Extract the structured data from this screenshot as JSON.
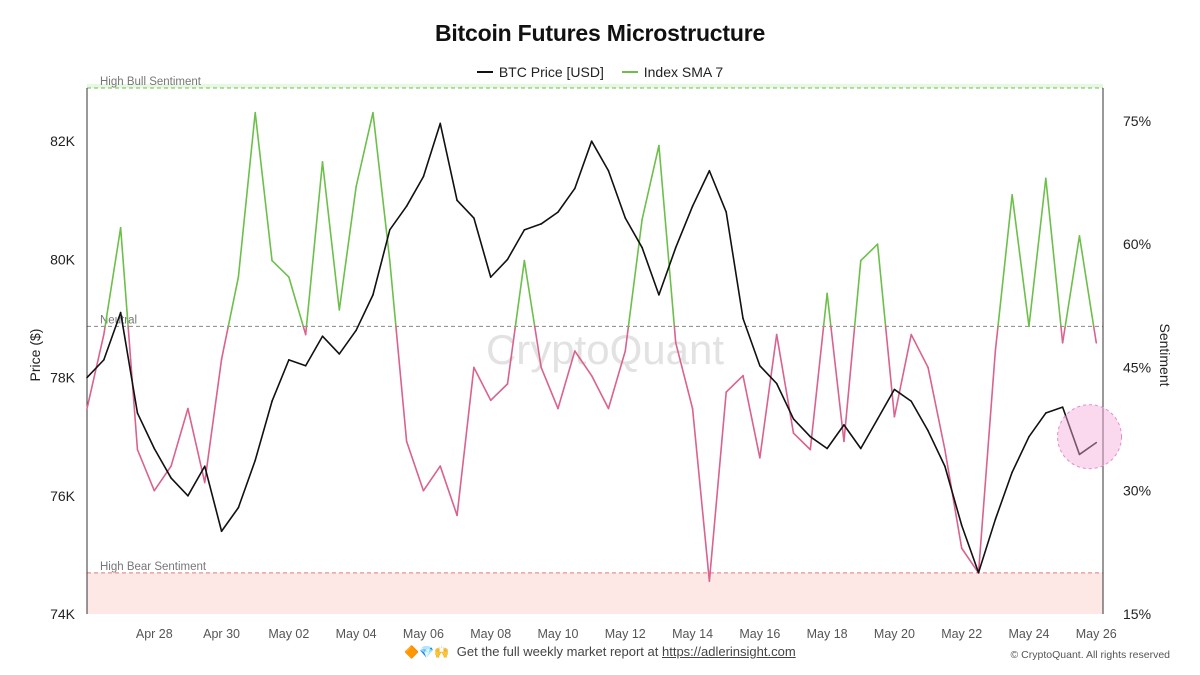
{
  "title": "Bitcoin Futures Microstructure",
  "legend": [
    {
      "label": "BTC Price [USD]",
      "color": "#111111"
    },
    {
      "label": "Index SMA 7",
      "color": "#6cc04a"
    }
  ],
  "watermark": "CryptoQuant",
  "footer": {
    "emoji": "🔶💎🙌",
    "text": "Get the full weekly market report at ",
    "link": "https://adlerinsight.com"
  },
  "copyright": "© CryptoQuant. All rights reserved",
  "chart_data": {
    "type": "line",
    "title": "Bitcoin Futures Microstructure",
    "xlabel": "",
    "ylabel": "Price ($)",
    "y2label": "Sentiment",
    "x_ticks": [
      "Apr 28",
      "Apr 30",
      "May 02",
      "May 04",
      "May 06",
      "May 08",
      "May 10",
      "May 12",
      "May 14",
      "May 16",
      "May 18",
      "May 20",
      "May 22",
      "May 24",
      "May 26"
    ],
    "x_range": [
      "Apr 26",
      "May 26"
    ],
    "y_ticks": [
      "74K",
      "76K",
      "78K",
      "80K",
      "82K"
    ],
    "y_tick_values": [
      74000,
      76000,
      78000,
      80000,
      82000
    ],
    "ylim": [
      74000,
      82900
    ],
    "y2_ticks": [
      "15%",
      "30%",
      "45%",
      "60%",
      "75%"
    ],
    "y2_tick_values": [
      15,
      30,
      45,
      60,
      75
    ],
    "y2lim": [
      15,
      79
    ],
    "reference_lines": [
      {
        "label": "High Bull Sentiment",
        "value": 79,
        "color": "#6cc04a"
      },
      {
        "label": "Neutral",
        "value": 50,
        "color": "#888888"
      },
      {
        "label": "High Bear Sentiment",
        "value": 20,
        "color": "#e07a7a"
      }
    ],
    "shaded_zones": [
      {
        "from": 79,
        "to": 79.5,
        "color": "#e8f6e4"
      },
      {
        "from": 15,
        "to": 20,
        "color": "#fde8e6"
      }
    ],
    "sentiment_colors": {
      "above_neutral": "#6cc04a",
      "below_neutral": "#d9628f"
    },
    "grid": false,
    "series": [
      {
        "name": "BTC Price [USD]",
        "axis": "left",
        "color": "#111111",
        "x": [
          0,
          0.5,
          1,
          1.5,
          2,
          2.5,
          3,
          3.5,
          4,
          4.5,
          5,
          5.5,
          6,
          6.5,
          7,
          7.5,
          8,
          8.5,
          9,
          9.5,
          10,
          10.5,
          11,
          11.5,
          12,
          12.5,
          13,
          13.5,
          14,
          14.5,
          15,
          15.5,
          16,
          16.5,
          17,
          17.5,
          18,
          18.5,
          19,
          19.5,
          20,
          20.5,
          21,
          21.5,
          22,
          22.5,
          23,
          23.5,
          24,
          24.5,
          25,
          25.5,
          26,
          26.5,
          27,
          27.5,
          28,
          28.5,
          29,
          29.5,
          30
        ],
        "values": [
          78000,
          78300,
          79100,
          77400,
          76800,
          76300,
          76000,
          76500,
          75400,
          75800,
          76600,
          77600,
          78300,
          78200,
          78700,
          78400,
          78800,
          79400,
          80500,
          80900,
          81400,
          82300,
          81000,
          80700,
          79700,
          80000,
          80500,
          80600,
          80800,
          81200,
          82000,
          81500,
          80700,
          80200,
          79400,
          80200,
          80900,
          81500,
          80800,
          79000,
          78200,
          77900,
          77300,
          77000,
          76800,
          77200,
          76800,
          77300,
          77800,
          77600,
          77100,
          76500,
          75500,
          74700,
          75600,
          76400,
          77000,
          77400,
          77500,
          76700,
          76900
        ]
      },
      {
        "name": "Index SMA 7",
        "axis": "right",
        "x": [
          0,
          0.5,
          1,
          1.5,
          2,
          2.5,
          3,
          3.5,
          4,
          4.5,
          5,
          5.5,
          6,
          6.5,
          7,
          7.5,
          8,
          8.5,
          9,
          9.5,
          10,
          10.5,
          11,
          11.5,
          12,
          12.5,
          13,
          13.5,
          14,
          14.5,
          15,
          15.5,
          16,
          16.5,
          17,
          17.5,
          18,
          18.5,
          19,
          19.5,
          20,
          20.5,
          21,
          21.5,
          22,
          22.5,
          23,
          23.5,
          24,
          24.5,
          25,
          25.5,
          26,
          26.5,
          27,
          27.5,
          28,
          28.5,
          29,
          29.5,
          30
        ],
        "values": [
          40,
          49,
          62,
          35,
          30,
          33,
          40,
          31,
          46,
          56,
          76,
          58,
          56,
          49,
          70,
          52,
          67,
          76,
          58,
          36,
          30,
          33,
          27,
          45,
          41,
          43,
          58,
          45,
          40,
          47,
          44,
          40,
          47,
          63,
          72,
          48,
          40,
          19,
          42,
          44,
          34,
          49,
          37,
          35,
          54,
          36,
          58,
          60,
          39,
          49,
          45,
          35,
          23,
          20,
          47,
          66,
          50,
          68,
          48,
          61,
          48
        ]
      }
    ],
    "annotations": [
      {
        "type": "highlight-circle",
        "x": 29.8,
        "y": 77000,
        "color": "#f4a8d8"
      }
    ]
  }
}
